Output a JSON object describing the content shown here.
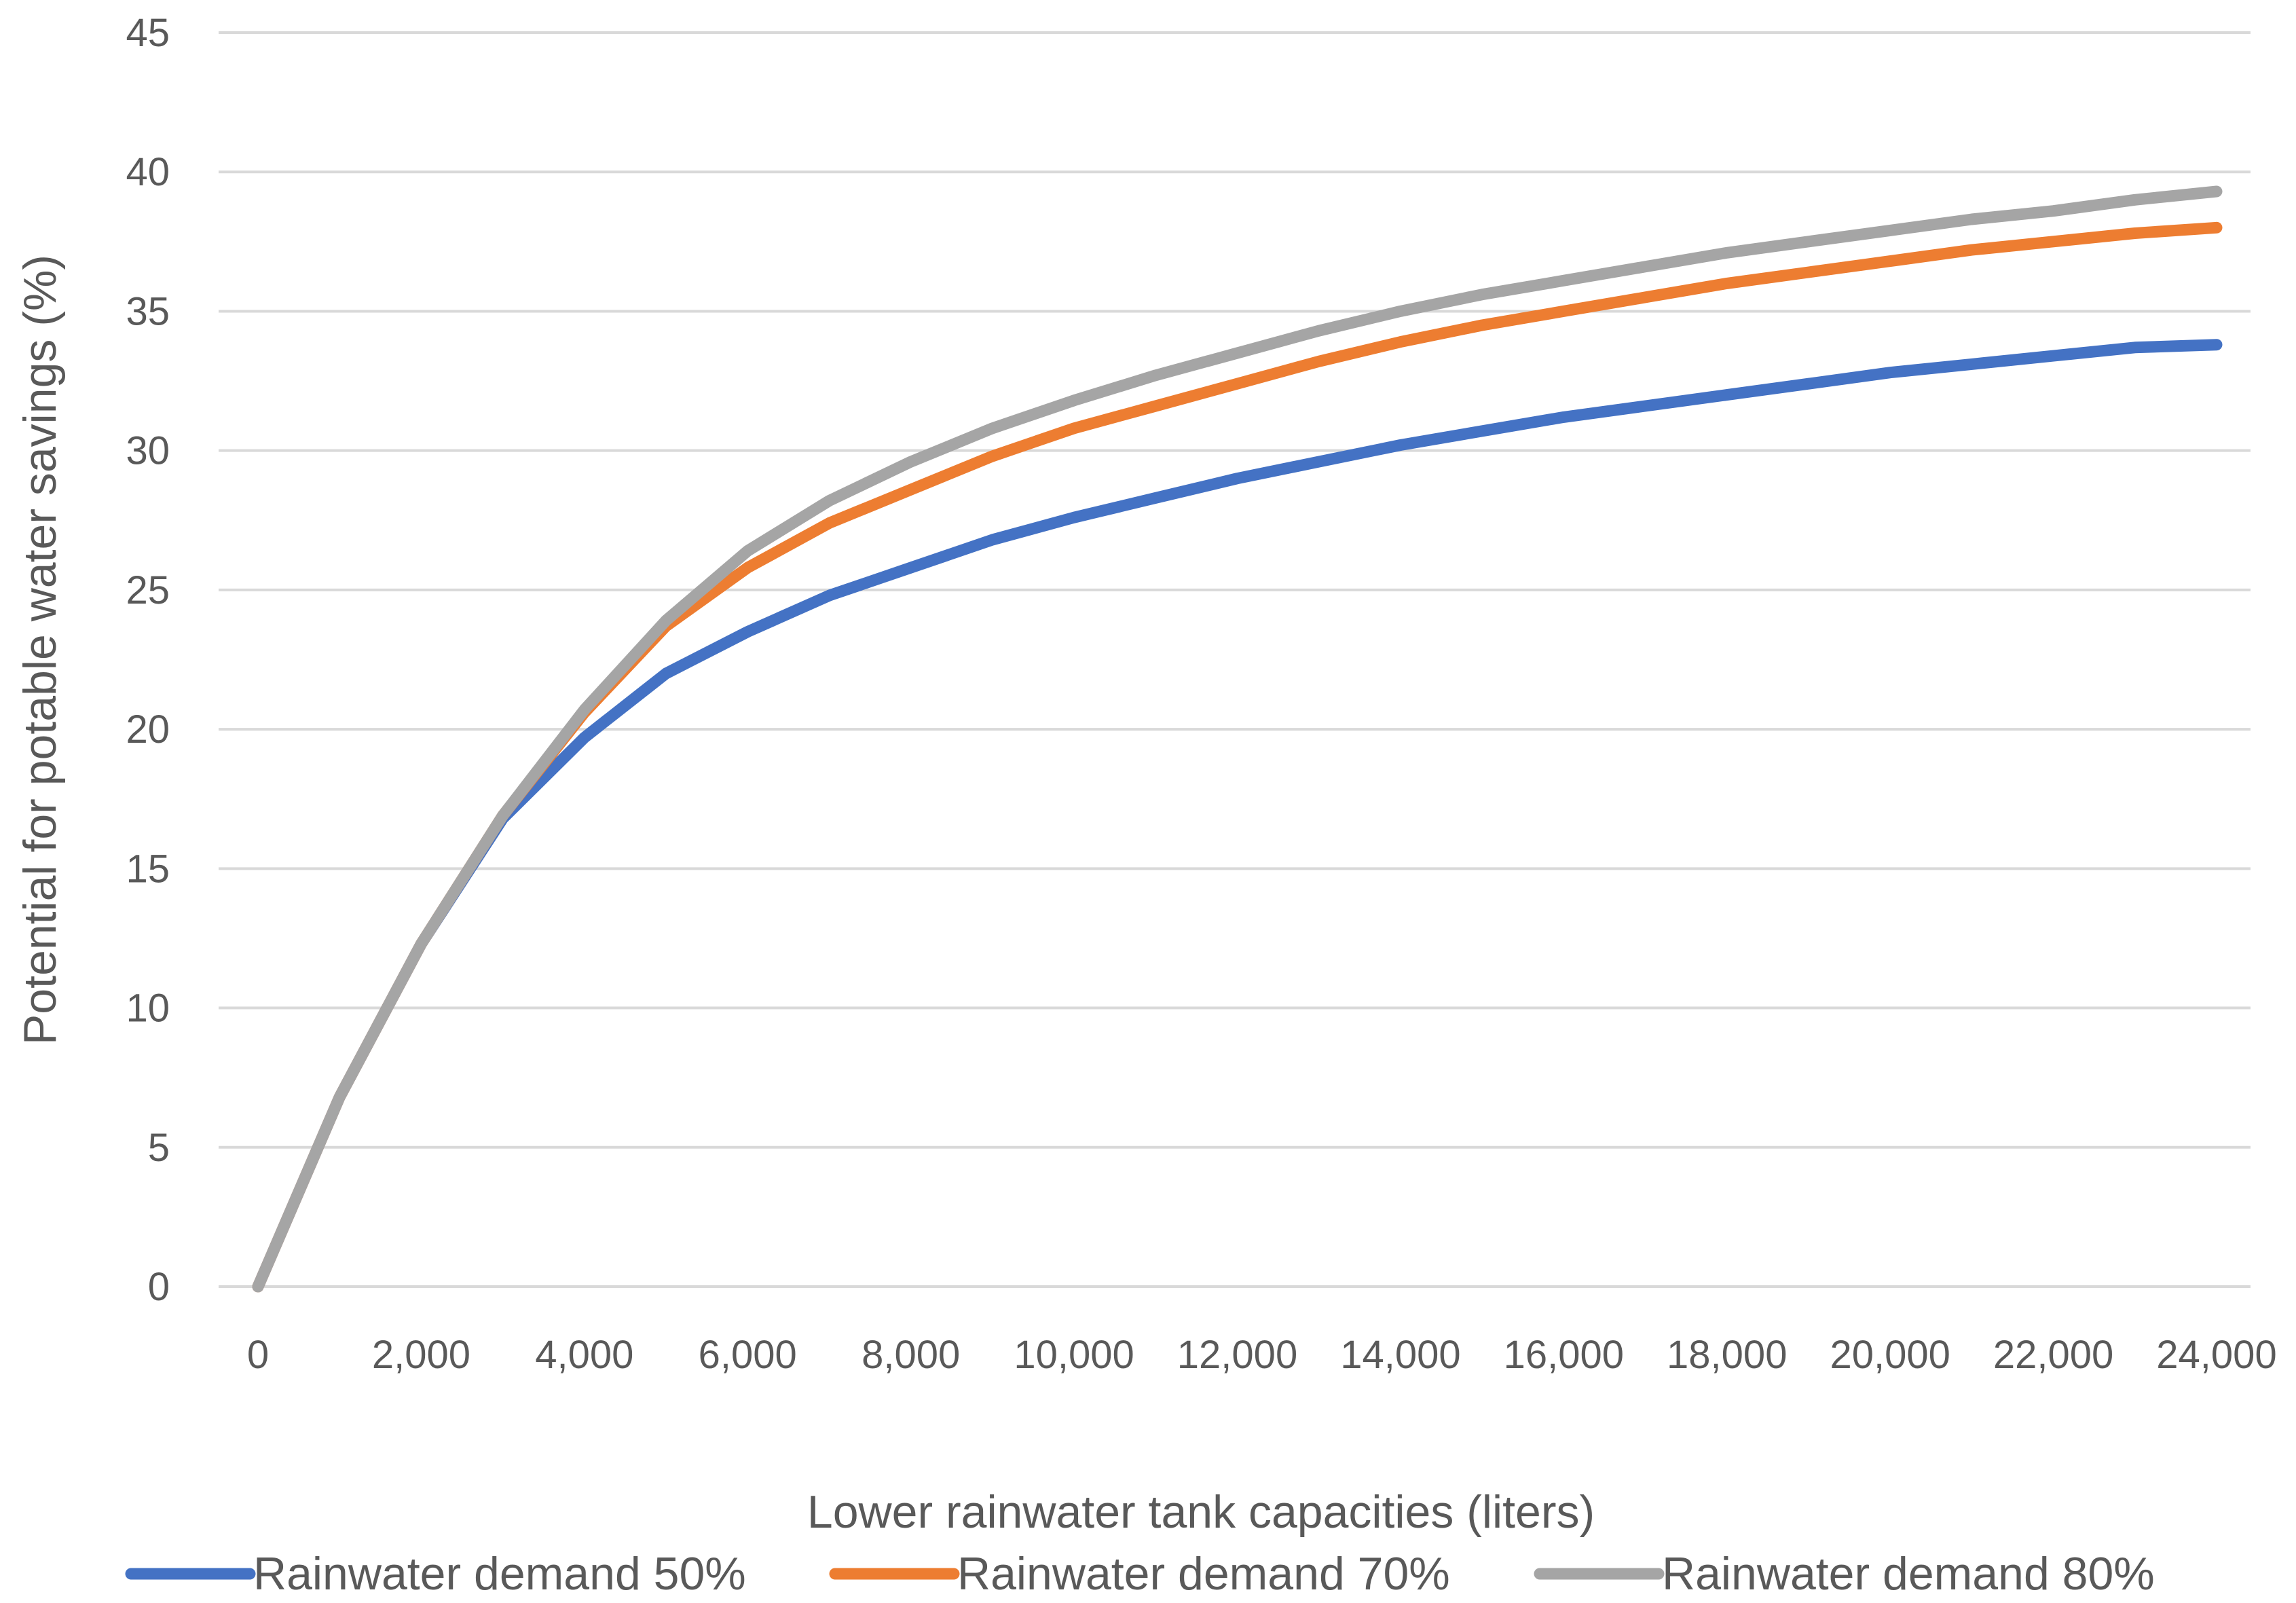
{
  "chart_data": {
    "type": "line",
    "title": "",
    "xlabel": "Lower rainwater tank capacities (liters)",
    "ylabel": "Potential for potable water savings (%)",
    "xlim": [
      0,
      24000
    ],
    "ylim": [
      0,
      45
    ],
    "x_ticks": [
      0,
      2000,
      4000,
      6000,
      8000,
      10000,
      12000,
      14000,
      16000,
      18000,
      20000,
      22000,
      24000
    ],
    "x_tick_labels": [
      "0",
      "2,000",
      "4,000",
      "6,000",
      "8,000",
      "10,000",
      "12,000",
      "14,000",
      "16,000",
      "18,000",
      "20,000",
      "22,000",
      "24,000"
    ],
    "y_ticks": [
      0,
      5,
      10,
      15,
      20,
      25,
      30,
      35,
      40,
      45
    ],
    "y_tick_labels": [
      "0",
      "5",
      "10",
      "15",
      "20",
      "25",
      "30",
      "35",
      "40",
      "45"
    ],
    "grid": "horizontal",
    "legend_position": "bottom",
    "x": [
      0,
      1000,
      2000,
      3000,
      4000,
      5000,
      6000,
      7000,
      8000,
      9000,
      10000,
      11000,
      12000,
      13000,
      14000,
      15000,
      16000,
      17000,
      18000,
      19000,
      20000,
      21000,
      22000,
      23000,
      24000
    ],
    "series": [
      {
        "name": "Rainwater demand 50%",
        "color": "#4472c4",
        "values": [
          0,
          6.8,
          12.3,
          16.8,
          19.7,
          22.0,
          23.5,
          24.8,
          25.8,
          26.8,
          27.6,
          28.3,
          29.0,
          29.6,
          30.2,
          30.7,
          31.2,
          31.6,
          32.0,
          32.4,
          32.8,
          33.1,
          33.4,
          33.7,
          33.8
        ]
      },
      {
        "name": "Rainwater demand 70%",
        "color": "#ed7d31",
        "values": [
          0,
          6.8,
          12.3,
          16.9,
          20.6,
          23.7,
          25.8,
          27.4,
          28.6,
          29.8,
          30.8,
          31.6,
          32.4,
          33.2,
          33.9,
          34.5,
          35.0,
          35.5,
          36.0,
          36.4,
          36.8,
          37.2,
          37.5,
          37.8,
          38.0
        ]
      },
      {
        "name": "Rainwater demand 80%",
        "color": "#a5a5a5",
        "values": [
          0,
          6.8,
          12.3,
          16.9,
          20.7,
          23.9,
          26.4,
          28.2,
          29.6,
          30.8,
          31.8,
          32.7,
          33.5,
          34.3,
          35.0,
          35.6,
          36.1,
          36.6,
          37.1,
          37.5,
          37.9,
          38.3,
          38.6,
          39.0,
          39.3
        ]
      }
    ]
  }
}
